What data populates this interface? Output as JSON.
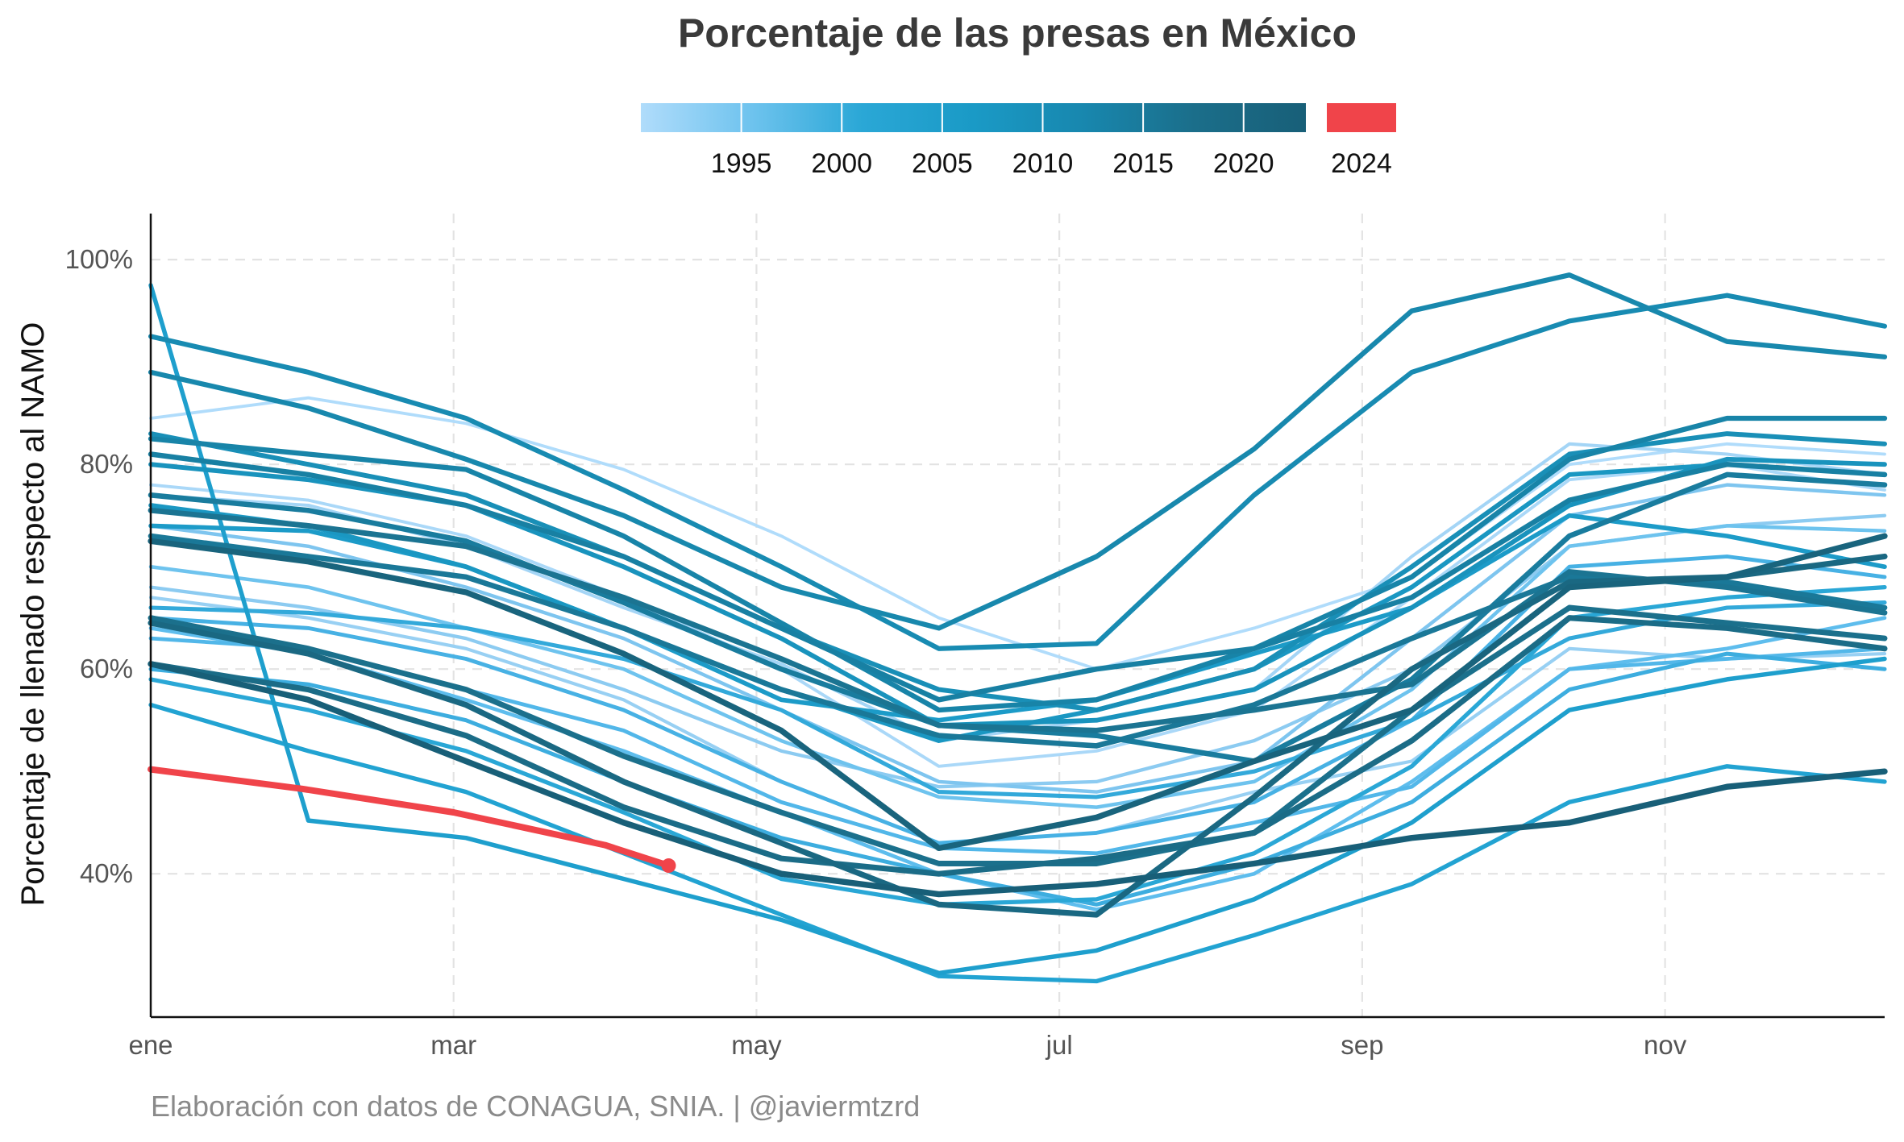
{
  "chart_data": {
    "type": "line",
    "title": "Porcentaje de las presas en México",
    "ylabel": "Porcentaje de llenado respecto al NAMO",
    "xlabel": "",
    "caption": "Elaboración con datos de CONAGUA, SNIA. | @javiermtzrd",
    "x_axis_unit": "month of year (0 = 1 ene, 12 = 31 dic)",
    "xlim": [
      0,
      11.45
    ],
    "ylim": [
      26,
      104.5
    ],
    "x_ticks": [
      {
        "value": 0,
        "label": "ene"
      },
      {
        "value": 2,
        "label": "mar"
      },
      {
        "value": 4,
        "label": "may"
      },
      {
        "value": 6,
        "label": "jul"
      },
      {
        "value": 8,
        "label": "sep"
      },
      {
        "value": 10,
        "label": "nov"
      }
    ],
    "y_ticks": [
      {
        "value": 40,
        "label": "40%"
      },
      {
        "value": 60,
        "label": "60%"
      },
      {
        "value": 80,
        "label": "80%"
      },
      {
        "value": 100,
        "label": "100%"
      }
    ],
    "grid": true,
    "legend": {
      "placement": "top",
      "gradient_stops": [
        "#b0dcfb",
        "#6ec3ee",
        "#2aa7d6",
        "#1a9ac6",
        "#1887ae",
        "#1b6e8a",
        "#185f78"
      ],
      "gradient_labels": [
        "1995",
        "2000",
        "2005",
        "2010",
        "2015",
        "2020"
      ],
      "highlight": {
        "label": "2024",
        "color": "#f0444a"
      }
    },
    "highlight_series": {
      "name": "2024",
      "color": "#f0444a",
      "x": [
        0,
        1,
        2,
        3,
        3.42
      ],
      "values": [
        50.2,
        48.3,
        46.0,
        42.8,
        40.8
      ]
    },
    "series": [
      {
        "color": "#b0dcfb",
        "values": [
          84.5,
          86.5,
          84.0,
          79.5,
          73.0,
          65.0,
          60.0,
          64.0,
          69.0,
          80.0,
          82.0,
          81.0
        ]
      },
      {
        "color": "#aad8f8",
        "values": [
          78.0,
          76.5,
          73.0,
          67.0,
          60.0,
          50.5,
          52.0,
          56.0,
          67.0,
          78.5,
          80.0,
          77.5
        ]
      },
      {
        "color": "#a4d5f6",
        "values": [
          77.0,
          76.0,
          72.0,
          66.0,
          60.5,
          53.0,
          55.0,
          58.0,
          71.0,
          82.0,
          81.0,
          79.0
        ]
      },
      {
        "color": "#98d0f3",
        "values": [
          67.0,
          65.0,
          62.0,
          57.0,
          49.0,
          43.0,
          44.0,
          48.0,
          51.0,
          62.0,
          61.0,
          61.5
        ]
      },
      {
        "color": "#8ccbf1",
        "values": [
          68.0,
          66.0,
          63.0,
          58.0,
          52.0,
          48.5,
          49.0,
          53.0,
          60.0,
          72.0,
          74.0,
          75.0
        ]
      },
      {
        "color": "#7ec5ef",
        "values": [
          74.0,
          72.0,
          68.0,
          63.0,
          56.0,
          49.0,
          48.0,
          51.0,
          63.0,
          75.0,
          78.0,
          77.0
        ]
      },
      {
        "color": "#6ec3ee",
        "values": [
          70.0,
          68.0,
          64.0,
          60.0,
          53.0,
          47.5,
          46.5,
          49.0,
          58.0,
          72.0,
          74.0,
          73.5
        ]
      },
      {
        "color": "#5ebded",
        "values": [
          64.0,
          61.5,
          57.0,
          52.0,
          46.0,
          40.0,
          36.5,
          40.0,
          49.0,
          60.0,
          62.0,
          65.0
        ]
      },
      {
        "color": "#52b7e9",
        "values": [
          63.0,
          62.0,
          58.0,
          54.0,
          47.0,
          42.5,
          42.0,
          45.0,
          48.5,
          60.0,
          61.0,
          62.0
        ]
      },
      {
        "color": "#47b1e4",
        "values": [
          65.0,
          64.0,
          61.0,
          56.0,
          49.0,
          43.0,
          44.0,
          47.0,
          55.0,
          70.0,
          71.0,
          69.0
        ]
      },
      {
        "color": "#3daddf",
        "values": [
          60.0,
          58.5,
          55.0,
          49.0,
          43.5,
          40.0,
          37.0,
          41.0,
          47.0,
          58.0,
          61.5,
          60.0
        ]
      },
      {
        "color": "#33a9da",
        "values": [
          66.0,
          65.5,
          64.0,
          61.0,
          56.0,
          48.0,
          47.5,
          50.0,
          55.0,
          63.0,
          66.0,
          66.5
        ]
      },
      {
        "color": "#2aa7d6",
        "values": [
          59.0,
          56.0,
          52.0,
          46.0,
          39.5,
          37.0,
          37.5,
          42.0,
          50.5,
          65.0,
          67.0,
          68.0
        ]
      },
      {
        "color": "#22a3d2",
        "values": [
          56.5,
          52.0,
          48.0,
          42.0,
          36.0,
          30.0,
          29.5,
          34.0,
          39.0,
          47.0,
          50.5,
          49.0
        ]
      },
      {
        "color": "#1e9fcd",
        "values": [
          97.5,
          45.2,
          43.5,
          39.5,
          35.5,
          30.3,
          32.5,
          37.5,
          45.0,
          56.0,
          59.0,
          61.0
        ]
      },
      {
        "color": "#1c9bc8",
        "values": [
          74.0,
          73.5,
          70.0,
          64.0,
          57.0,
          55.0,
          57.0,
          61.5,
          66.0,
          75.0,
          73.0,
          70.0
        ]
      },
      {
        "color": "#1a97c2",
        "values": [
          76.0,
          74.0,
          70.0,
          64.0,
          58.0,
          53.0,
          56.0,
          60.0,
          68.0,
          79.0,
          80.0,
          79.0
        ]
      },
      {
        "color": "#1993bd",
        "values": [
          80.0,
          78.5,
          76.0,
          70.0,
          63.0,
          54.5,
          55.0,
          58.0,
          66.0,
          76.0,
          80.5,
          80.0
        ]
      },
      {
        "color": "#198fb7",
        "values": [
          83.0,
          80.0,
          77.0,
          71.0,
          64.0,
          58.0,
          56.0,
          60.0,
          70.0,
          81.0,
          83.0,
          82.0
        ]
      },
      {
        "color": "#188bb2",
        "values": [
          92.5,
          89.0,
          84.5,
          77.5,
          70.0,
          62.0,
          62.5,
          77.0,
          89.0,
          94.0,
          96.5,
          93.5
        ]
      },
      {
        "color": "#1888ad",
        "values": [
          89.0,
          85.5,
          80.5,
          75.0,
          68.0,
          64.0,
          71.0,
          81.5,
          95.0,
          98.5,
          92.0,
          90.5
        ]
      },
      {
        "color": "#1884a8",
        "values": [
          82.5,
          81.0,
          79.5,
          73.0,
          64.5,
          56.0,
          57.0,
          62.0,
          69.0,
          80.5,
          84.5,
          84.5
        ]
      },
      {
        "color": "#1880a3",
        "values": [
          81.0,
          79.0,
          76.0,
          71.0,
          64.0,
          57.0,
          60.0,
          62.0,
          67.0,
          76.5,
          80.0,
          79.0
        ]
      },
      {
        "color": "#197c9e",
        "values": [
          77.0,
          75.5,
          72.5,
          66.5,
          60.0,
          54.5,
          53.5,
          51.0,
          59.0,
          73.0,
          79.0,
          78.0
        ]
      },
      {
        "color": "#1a7898",
        "values": [
          73.0,
          71.0,
          69.0,
          64.0,
          58.0,
          53.5,
          52.5,
          56.5,
          63.0,
          69.0,
          68.5,
          66.0
        ]
      },
      {
        "color": "#1b7492",
        "values": [
          75.5,
          74.0,
          72.0,
          67.0,
          61.0,
          54.5,
          54.0,
          56.0,
          58.5,
          69.5,
          68.0,
          65.5
        ]
      },
      {
        "color": "#1b708c",
        "values": [
          65.0,
          62.0,
          58.0,
          51.5,
          46.0,
          41.0,
          41.0,
          44.0,
          56.0,
          66.0,
          64.5,
          63.0
        ]
      },
      {
        "color": "#1b6c87",
        "values": [
          60.5,
          58.0,
          53.5,
          46.5,
          41.5,
          40.0,
          41.5,
          44.0,
          53.0,
          65.0,
          64.0,
          62.0
        ]
      },
      {
        "color": "#1a6882",
        "values": [
          64.5,
          61.5,
          56.5,
          49.0,
          43.0,
          37.0,
          36.0,
          47.5,
          60.0,
          68.5,
          69.0,
          71.0
        ]
      },
      {
        "color": "#19647d",
        "values": [
          72.5,
          70.5,
          67.5,
          61.5,
          54.0,
          42.5,
          45.5,
          51.0,
          56.0,
          68.0,
          69.0,
          73.0
        ]
      },
      {
        "color": "#185f78",
        "values": [
          60.5,
          57.0,
          51.0,
          45.0,
          40.0,
          38.0,
          39.0,
          41.0,
          43.5,
          45.0,
          48.5,
          50.0
        ]
      }
    ]
  }
}
